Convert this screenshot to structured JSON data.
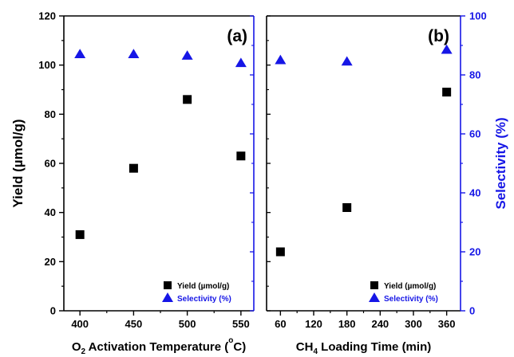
{
  "colors": {
    "yield": "#000000",
    "selectivity": "#1616e6",
    "axis_right": "#1616e6"
  },
  "chart_data": [
    {
      "type": "scatter",
      "panel_label": "(a)",
      "xlabel": {
        "prefix": "O",
        "sub": "2",
        "mid": " Activation Temperature (",
        "sup": "o",
        "suffix": "C)"
      },
      "ylabel": "Yield (µmol/g)",
      "xlim": [
        385,
        562
      ],
      "ylim": [
        0,
        120
      ],
      "xticks": [
        "400",
        "450",
        "500",
        "550"
      ],
      "yticks": [
        "0",
        "20",
        "40",
        "60",
        "80",
        "100",
        "120"
      ],
      "legend_placement": "bottom-right",
      "series": [
        {
          "name": "Yield (µmol/g)",
          "axis": "left",
          "marker": "square",
          "x": [
            400,
            450,
            500,
            550
          ],
          "values": [
            31,
            58,
            86,
            63
          ]
        },
        {
          "name": "Selectivity (%)",
          "axis": "right",
          "marker": "triangle",
          "x": [
            400,
            450,
            500,
            550
          ],
          "values": [
            87,
            87,
            86.5,
            84
          ]
        }
      ]
    },
    {
      "type": "scatter",
      "panel_label": "(b)",
      "xlabel": {
        "prefix": "CH",
        "sub": "4",
        "mid": " Loading Time (min)",
        "sup": "",
        "suffix": ""
      },
      "ylabel": "Selectivity (%)",
      "xlim": [
        35,
        385
      ],
      "ylim": [
        0,
        100
      ],
      "xticks": [
        "60",
        "120",
        "180",
        "240",
        "300",
        "360"
      ],
      "yticks": [
        "0",
        "20",
        "40",
        "60",
        "80",
        "100"
      ],
      "legend_placement": "bottom-right",
      "series": [
        {
          "name": "Yield (µmol/g)",
          "axis": "left",
          "marker": "square",
          "x": [
            60,
            180,
            360
          ],
          "values": [
            24,
            42,
            89
          ]
        },
        {
          "name": "Selectivity (%)",
          "axis": "right",
          "marker": "triangle",
          "x": [
            60,
            180,
            360
          ],
          "values": [
            85,
            84.5,
            88.5
          ]
        }
      ]
    }
  ]
}
